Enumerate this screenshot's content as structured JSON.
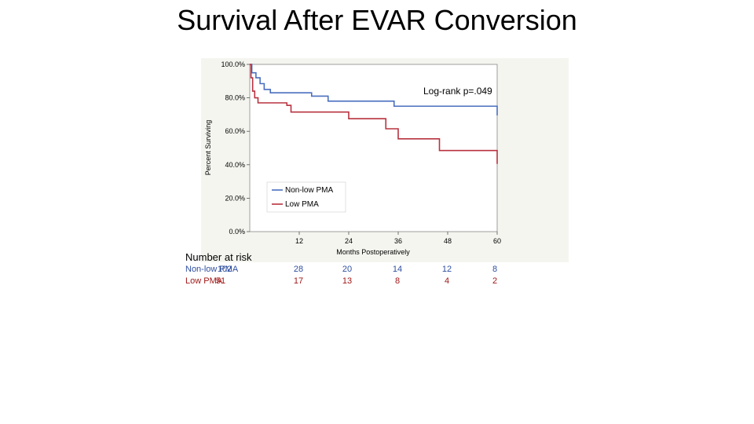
{
  "title": "Survival After EVAR Conversion",
  "colors": {
    "non_low": "#4a6fbf",
    "low": "#b8323f",
    "non_low_text": "#2f4f9e",
    "low_text": "#a01818",
    "plot_bg": "#ffffff",
    "frame_bg": "#f5f5f0"
  },
  "annotation": "Log-rank p=.049",
  "risk_table": {
    "heading": "Number at risk",
    "rows": [
      {
        "label": "Non-low PMA",
        "values": [
          "102",
          "28",
          "20",
          "14",
          "12",
          "8"
        ]
      },
      {
        "label": "Low PMA",
        "values": [
          "51",
          "17",
          "13",
          "8",
          "4",
          "2"
        ]
      }
    ]
  },
  "chart_data": {
    "type": "line",
    "title": "",
    "xlabel": "Months Postoperatively",
    "ylabel": "Percent Surviving",
    "xlim": [
      0,
      60
    ],
    "ylim": [
      0,
      100
    ],
    "x_ticks": [
      "12",
      "24",
      "36",
      "48",
      "60"
    ],
    "y_ticks": [
      "0.0%",
      "20.0%",
      "40.0%",
      "60.0%",
      "80.0%",
      "100.0%"
    ],
    "grid": false,
    "legend_position": "bottom-left",
    "series": [
      {
        "name": "Non-low PMA",
        "step": true,
        "x": [
          0,
          0.5,
          1.5,
          2.5,
          3.5,
          5,
          15,
          19,
          35,
          60
        ],
        "y": [
          100,
          95,
          92,
          88.5,
          85,
          83,
          81,
          78,
          75,
          69.5
        ]
      },
      {
        "name": "Low PMA",
        "step": true,
        "x": [
          0,
          0.3,
          0.7,
          1.2,
          2,
          9,
          10,
          24,
          33,
          36,
          46,
          60
        ],
        "y": [
          100,
          92,
          84,
          80,
          77,
          75.5,
          71.5,
          67.5,
          61.5,
          55.5,
          48.5,
          40.5
        ]
      }
    ]
  }
}
